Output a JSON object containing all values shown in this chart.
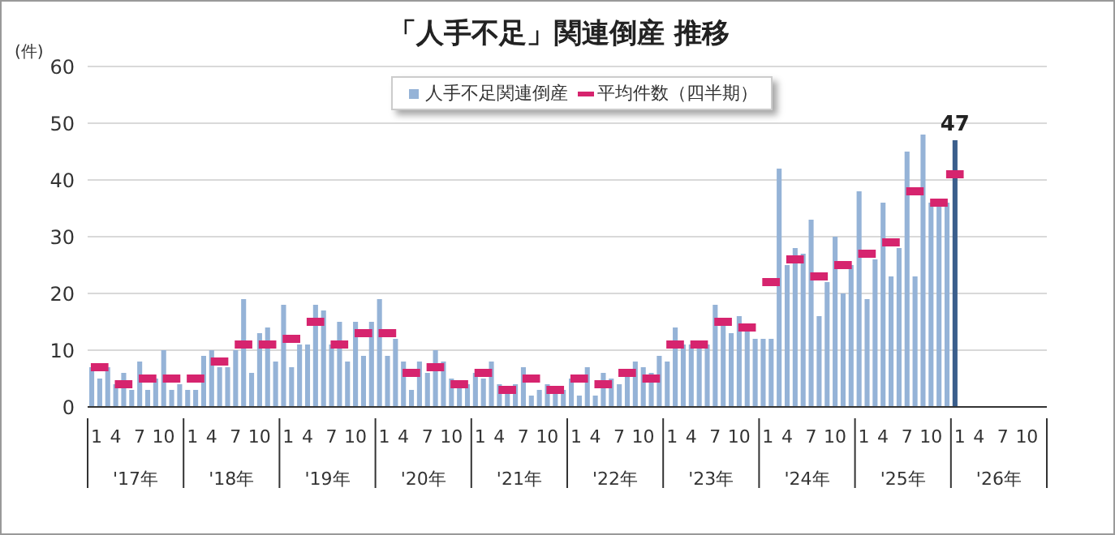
{
  "chart_data": {
    "type": "bar",
    "title": "「人手不足」関連倒産  推移",
    "ylabel": "(件)",
    "categories": [
      "1",
      null,
      null,
      "4",
      null,
      null,
      "7",
      null,
      null,
      "10",
      null,
      null,
      "1",
      null,
      null,
      "4",
      null,
      null,
      "7",
      null,
      null,
      "10",
      null,
      null,
      "1",
      null,
      null,
      "4",
      null,
      null,
      "7",
      null,
      null,
      "10",
      null,
      null,
      "1",
      null,
      null,
      "4",
      null,
      null,
      "7",
      null,
      null,
      "10",
      null,
      null,
      "1",
      null,
      null,
      "4",
      null,
      null,
      "7",
      null,
      null,
      "10",
      null,
      null,
      "1",
      null,
      null,
      "4",
      null,
      null,
      "7",
      null,
      null,
      "10",
      null,
      null,
      "1",
      null,
      null,
      "4",
      null,
      null,
      "7",
      null,
      null,
      "10",
      null,
      null,
      "1",
      null,
      null,
      "4",
      null,
      null,
      "7",
      null,
      null,
      "10",
      null,
      null,
      "1",
      null,
      null,
      "4",
      null,
      null,
      "7",
      null,
      null,
      "10",
      null,
      null,
      "1",
      null,
      null,
      "4",
      null,
      null,
      "7",
      null,
      null,
      "10",
      null,
      null
    ],
    "annotations": [
      "'17年",
      "'18年",
      "'19年",
      "'20年",
      "'21年",
      "'22年",
      "'23年",
      "'24年",
      "'25年",
      "'26年"
    ],
    "series": [
      {
        "name": "人手不足関連倒産",
        "color": "#95b3d7",
        "colors": [
          "#95b3d7",
          "#95b3d7",
          "#95b3d7",
          "#95b3d7",
          "#95b3d7",
          "#95b3d7",
          "#95b3d7",
          "#95b3d7",
          "#95b3d7",
          "#95b3d7",
          "#95b3d7",
          "#95b3d7",
          "#95b3d7",
          "#95b3d7",
          "#95b3d7",
          "#95b3d7",
          "#95b3d7",
          "#95b3d7",
          "#95b3d7",
          "#95b3d7",
          "#95b3d7",
          "#95b3d7",
          "#95b3d7",
          "#95b3d7",
          "#95b3d7",
          "#95b3d7",
          "#95b3d7",
          "#95b3d7",
          "#95b3d7",
          "#95b3d7",
          "#95b3d7",
          "#95b3d7",
          "#95b3d7",
          "#95b3d7",
          "#95b3d7",
          "#95b3d7",
          "#95b3d7",
          "#95b3d7",
          "#95b3d7",
          "#95b3d7",
          "#95b3d7",
          "#95b3d7",
          "#95b3d7",
          "#95b3d7",
          "#95b3d7",
          "#95b3d7",
          "#95b3d7",
          "#95b3d7",
          "#95b3d7",
          "#95b3d7",
          "#95b3d7",
          "#95b3d7",
          "#95b3d7",
          "#95b3d7",
          "#95b3d7",
          "#95b3d7",
          "#95b3d7",
          "#95b3d7",
          "#95b3d7",
          "#95b3d7",
          "#95b3d7",
          "#95b3d7",
          "#95b3d7",
          "#95b3d7",
          "#95b3d7",
          "#95b3d7",
          "#95b3d7",
          "#95b3d7",
          "#95b3d7",
          "#95b3d7",
          "#95b3d7",
          "#95b3d7",
          "#95b3d7",
          "#95b3d7",
          "#95b3d7",
          "#95b3d7",
          "#95b3d7",
          "#95b3d7",
          "#95b3d7",
          "#95b3d7",
          "#95b3d7",
          "#95b3d7",
          "#95b3d7",
          "#95b3d7",
          "#95b3d7",
          "#95b3d7",
          "#95b3d7",
          "#95b3d7",
          "#95b3d7",
          "#95b3d7",
          "#95b3d7",
          "#95b3d7",
          "#95b3d7",
          "#95b3d7",
          "#95b3d7",
          "#95b3d7",
          "#95b3d7",
          "#95b3d7",
          "#95b3d7",
          "#95b3d7",
          "#95b3d7",
          "#95b3d7",
          "#95b3d7",
          "#95b3d7",
          "#95b3d7",
          "#95b3d7",
          "#95b3d7",
          "#95b3d7",
          "#3b5e8c",
          "#95b3d7",
          "#95b3d7",
          "#95b3d7",
          "#95b3d7",
          "#95b3d7",
          "#95b3d7",
          "#95b3d7",
          "#95b3d7",
          "#95b3d7",
          "#95b3d7",
          "#95b3d7"
        ],
        "values": [
          7,
          5,
          7,
          4,
          6,
          3,
          8,
          3,
          5,
          10,
          3,
          4,
          3,
          3,
          9,
          10,
          7,
          7,
          10,
          19,
          6,
          13,
          14,
          8,
          18,
          7,
          11,
          11,
          18,
          17,
          11,
          15,
          8,
          15,
          9,
          15,
          19,
          9,
          12,
          8,
          3,
          8,
          6,
          10,
          8,
          5,
          4,
          4,
          6,
          5,
          8,
          4,
          3,
          4,
          7,
          2,
          3,
          4,
          3,
          3,
          5,
          2,
          7,
          2,
          6,
          5,
          4,
          6,
          8,
          7,
          6,
          9,
          8,
          14,
          11,
          11,
          11,
          11,
          18,
          15,
          13,
          16,
          14,
          12,
          12,
          12,
          42,
          25,
          28,
          27,
          33,
          16,
          22,
          30,
          20,
          25,
          38,
          19,
          26,
          36,
          23,
          28,
          45,
          23,
          48,
          36,
          36,
          36,
          47,
          null,
          null,
          null,
          null,
          null,
          null,
          null,
          null,
          null,
          null,
          null
        ],
        "value_labels": [
          null,
          null,
          null,
          null,
          null,
          null,
          null,
          null,
          null,
          null,
          null,
          null,
          null,
          null,
          null,
          null,
          null,
          null,
          null,
          null,
          null,
          null,
          null,
          null,
          null,
          null,
          null,
          null,
          null,
          null,
          null,
          null,
          null,
          null,
          null,
          null,
          null,
          null,
          null,
          null,
          null,
          null,
          null,
          null,
          null,
          null,
          null,
          null,
          null,
          null,
          null,
          null,
          null,
          null,
          null,
          null,
          null,
          null,
          null,
          null,
          null,
          null,
          null,
          null,
          null,
          null,
          null,
          null,
          null,
          null,
          null,
          null,
          null,
          null,
          null,
          null,
          null,
          null,
          null,
          null,
          null,
          null,
          null,
          null,
          null,
          null,
          null,
          null,
          null,
          null,
          null,
          null,
          null,
          null,
          null,
          null,
          null,
          null,
          null,
          null,
          null,
          null,
          null,
          null,
          null,
          null,
          null,
          null,
          "47",
          null,
          null,
          null,
          null,
          null,
          null,
          null,
          null,
          null,
          null,
          null
        ]
      },
      {
        "name": "平均件数（四半期）",
        "type": "scatter",
        "color": "#d6246e",
        "values": [
          null,
          7,
          null,
          null,
          4,
          null,
          null,
          5,
          null,
          null,
          5,
          null,
          null,
          5,
          null,
          null,
          8,
          null,
          null,
          11,
          null,
          null,
          11,
          null,
          null,
          12,
          null,
          null,
          15,
          null,
          null,
          11,
          null,
          null,
          13,
          null,
          null,
          13,
          null,
          null,
          6,
          null,
          null,
          7,
          null,
          null,
          4,
          null,
          null,
          6,
          null,
          null,
          3,
          null,
          null,
          5,
          null,
          null,
          3,
          null,
          null,
          5,
          null,
          null,
          4,
          null,
          null,
          6,
          null,
          null,
          5,
          null,
          null,
          11,
          null,
          null,
          11,
          null,
          null,
          15,
          null,
          null,
          14,
          null,
          null,
          22,
          null,
          null,
          26,
          null,
          null,
          23,
          null,
          null,
          25,
          null,
          null,
          27,
          null,
          null,
          29,
          null,
          null,
          38,
          null,
          null,
          36,
          null,
          41,
          null,
          null,
          null,
          null,
          null,
          null,
          null,
          null,
          null,
          null,
          null
        ]
      }
    ],
    "ylim": [
      0,
      60
    ],
    "yticks": [
      0,
      10,
      20,
      30,
      40,
      50,
      60
    ],
    "grid": "y",
    "legend": "top"
  }
}
